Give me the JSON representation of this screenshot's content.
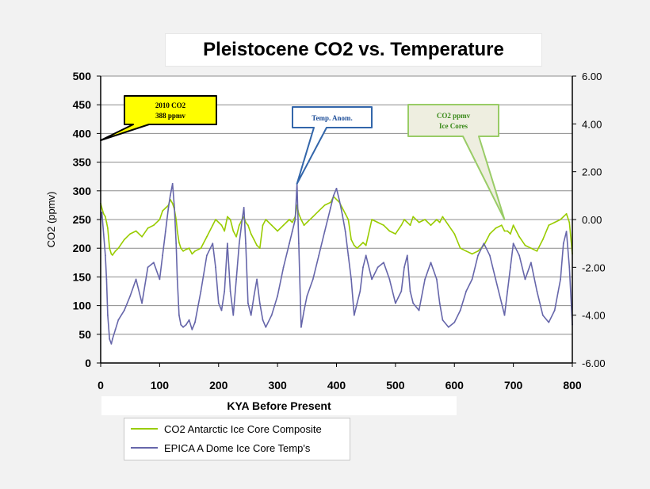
{
  "chart_data": {
    "type": "line",
    "title": "Pleistocene CO2 vs. Temperature",
    "xlabel": "KYA Before Present",
    "ylabel": "CO2 (ppmv)",
    "y2label": "",
    "xlim": [
      0,
      800
    ],
    "ylim": [
      0,
      500
    ],
    "y2lim": [
      -6,
      6
    ],
    "xticks": [
      "0",
      "100",
      "200",
      "300",
      "400",
      "500",
      "600",
      "700",
      "800"
    ],
    "yticks": [
      "0",
      "50",
      "100",
      "150",
      "200",
      "250",
      "300",
      "350",
      "400",
      "450",
      "500"
    ],
    "y2ticks": [
      "-6.00",
      "-4.00",
      "-2.00",
      "0.00",
      "2.00",
      "4.00",
      "6.00"
    ],
    "grid": "horizontal",
    "legend_position": "bottom-left",
    "series": [
      {
        "name": "CO2 Antarctic Ice Core Composite",
        "axis": "left",
        "color": "#99cc00",
        "x": [
          0,
          2,
          5,
          8,
          10,
          12,
          15,
          18,
          20,
          25,
          30,
          40,
          50,
          60,
          70,
          80,
          90,
          100,
          105,
          110,
          115,
          118,
          122,
          125,
          128,
          130,
          133,
          136,
          140,
          145,
          150,
          155,
          160,
          170,
          180,
          190,
          195,
          200,
          205,
          210,
          215,
          220,
          225,
          230,
          235,
          240,
          243,
          246,
          250,
          255,
          260,
          265,
          270,
          275,
          280,
          290,
          300,
          310,
          320,
          325,
          330,
          333,
          336,
          340,
          345,
          350,
          360,
          370,
          380,
          390,
          395,
          400,
          405,
          410,
          415,
          420,
          425,
          430,
          435,
          440,
          445,
          450,
          460,
          470,
          480,
          490,
          500,
          510,
          515,
          520,
          525,
          530,
          540,
          550,
          560,
          570,
          575,
          580,
          590,
          600,
          610,
          620,
          630,
          640,
          650,
          660,
          670,
          680,
          685,
          690,
          695,
          700,
          710,
          720,
          730,
          740,
          750,
          760,
          770,
          780,
          785,
          790,
          795,
          800
        ],
        "values": [
          278,
          270,
          260,
          255,
          245,
          235,
          200,
          190,
          188,
          195,
          200,
          215,
          225,
          230,
          220,
          235,
          240,
          250,
          265,
          270,
          275,
          285,
          278,
          268,
          250,
          230,
          210,
          200,
          195,
          198,
          200,
          190,
          195,
          200,
          220,
          240,
          250,
          245,
          240,
          230,
          255,
          250,
          230,
          220,
          240,
          250,
          255,
          245,
          240,
          225,
          215,
          205,
          200,
          240,
          250,
          240,
          230,
          240,
          250,
          245,
          255,
          275,
          260,
          250,
          240,
          245,
          255,
          265,
          275,
          280,
          290,
          285,
          280,
          270,
          260,
          250,
          215,
          205,
          200,
          205,
          210,
          205,
          250,
          245,
          240,
          230,
          225,
          240,
          250,
          245,
          240,
          255,
          245,
          250,
          240,
          250,
          245,
          255,
          240,
          225,
          200,
          195,
          190,
          195,
          205,
          225,
          235,
          240,
          230,
          230,
          225,
          240,
          220,
          205,
          200,
          195,
          215,
          240,
          245,
          250,
          255,
          260,
          245,
          190
        ]
      },
      {
        "name": "EPICA A Dome Ice Core Temp's",
        "axis": "right",
        "color": "#6666aa",
        "x": [
          0,
          2,
          5,
          8,
          10,
          12,
          15,
          18,
          20,
          25,
          30,
          40,
          50,
          60,
          70,
          80,
          90,
          100,
          105,
          110,
          115,
          118,
          122,
          125,
          128,
          130,
          133,
          136,
          140,
          145,
          150,
          155,
          160,
          170,
          180,
          190,
          195,
          200,
          205,
          210,
          215,
          220,
          225,
          230,
          235,
          240,
          243,
          246,
          250,
          255,
          260,
          265,
          270,
          275,
          280,
          290,
          300,
          310,
          320,
          325,
          330,
          333,
          336,
          340,
          345,
          350,
          360,
          370,
          380,
          390,
          395,
          400,
          405,
          410,
          415,
          420,
          425,
          430,
          435,
          440,
          445,
          450,
          460,
          470,
          480,
          490,
          500,
          510,
          515,
          520,
          525,
          530,
          540,
          550,
          560,
          570,
          575,
          580,
          590,
          600,
          610,
          620,
          630,
          640,
          650,
          660,
          670,
          680,
          685,
          690,
          695,
          700,
          710,
          720,
          730,
          740,
          750,
          760,
          770,
          780,
          785,
          790,
          795,
          800
        ],
        "values": [
          0.0,
          0.3,
          -0.6,
          -1.5,
          -2.5,
          -4.0,
          -5.0,
          -5.2,
          -5.0,
          -4.6,
          -4.2,
          -3.8,
          -3.2,
          -2.5,
          -3.5,
          -2.0,
          -1.8,
          -2.5,
          -1.5,
          -0.5,
          0.5,
          1.0,
          1.5,
          0.5,
          -1.0,
          -2.5,
          -4.0,
          -4.4,
          -4.5,
          -4.4,
          -4.2,
          -4.6,
          -4.3,
          -3.0,
          -1.5,
          -1.0,
          -2.0,
          -3.5,
          -3.8,
          -3.0,
          -1.0,
          -3.0,
          -4.0,
          -2.5,
          -1.0,
          0.0,
          0.5,
          -1.0,
          -3.5,
          -4.0,
          -3.2,
          -2.5,
          -3.5,
          -4.2,
          -4.5,
          -4.0,
          -3.2,
          -2.0,
          -1.0,
          -0.5,
          0.0,
          1.5,
          -1.0,
          -4.5,
          -3.8,
          -3.2,
          -2.5,
          -1.5,
          -0.5,
          0.5,
          1.0,
          1.3,
          0.8,
          0.2,
          -0.5,
          -1.5,
          -2.5,
          -4.0,
          -3.5,
          -3.0,
          -2.0,
          -1.5,
          -2.5,
          -2.0,
          -1.8,
          -2.5,
          -3.5,
          -3.0,
          -2.0,
          -1.5,
          -3.0,
          -3.5,
          -3.8,
          -2.5,
          -1.8,
          -2.5,
          -3.5,
          -4.2,
          -4.5,
          -4.3,
          -3.8,
          -3.0,
          -2.5,
          -1.5,
          -1.0,
          -1.5,
          -2.5,
          -3.5,
          -4.0,
          -3.0,
          -2.0,
          -1.0,
          -1.5,
          -2.5,
          -1.8,
          -3.0,
          -4.0,
          -4.3,
          -3.8,
          -2.5,
          -1.0,
          -0.5,
          -2.0,
          -4.4
        ]
      }
    ],
    "callouts": [
      {
        "label_line1": "2010 CO2",
        "label_line2": "388 ppmv",
        "target_x": 0,
        "target_y": 388,
        "axis": "left",
        "fill": "#ffff00",
        "stroke": "#000000",
        "text_color": "#000000"
      },
      {
        "label_line1": "Temp. Anom.",
        "label_line2": "",
        "target_x": 333,
        "target_y": 1.5,
        "axis": "right",
        "fill": "#ffffff",
        "stroke": "#3366aa",
        "text_color": "#1f4f99"
      },
      {
        "label_line1": "CO2 ppmv",
        "label_line2": "Ice Cores",
        "target_x": 685,
        "target_y": 250,
        "axis": "left",
        "fill": "#eeeee0",
        "stroke": "#99cc66",
        "text_color": "#3a8a1a"
      }
    ]
  }
}
